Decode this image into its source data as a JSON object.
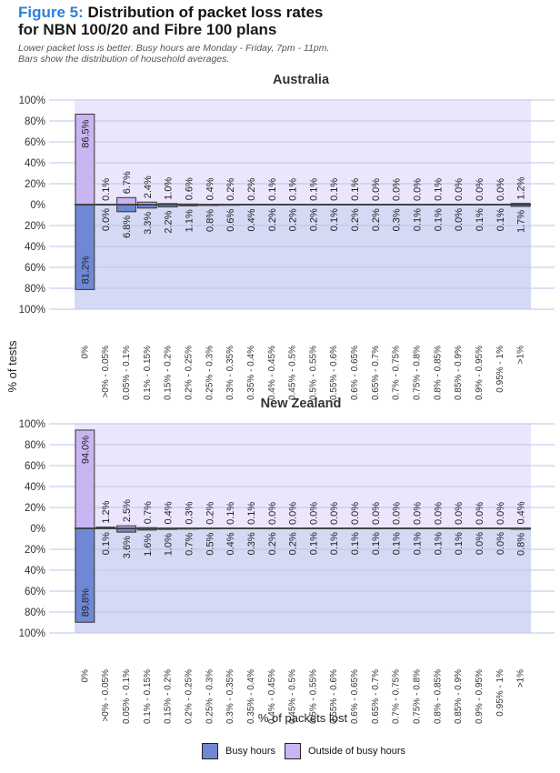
{
  "figure": {
    "label": "Figure 5:",
    "title_line1": "Distribution of packet loss rates",
    "title_line2": "for NBN 100/20 and Fibre 100 plans",
    "subtitle_line1": "Lower packet loss is better. Busy hours are Monday - Friday, 7pm - 11pm.",
    "subtitle_line2": "Bars show the distribution of household averages."
  },
  "legend": [
    {
      "name": "Busy hours",
      "color": "#6f88d6"
    },
    {
      "name": "Outside of busy hours",
      "color": "#c9b5f1"
    }
  ],
  "colors": {
    "busy": "#6f88d6",
    "outside": "#c9b5f1",
    "bg_top": "#ece6fd",
    "bg_bottom": "#d5daf4",
    "grid": "#bfc3e8",
    "zero_line": "#444444"
  },
  "chart_data": {
    "type": "bar",
    "layout": "mirrored",
    "ylabel": "% of tests",
    "xlabel": "% of packets lost",
    "yticks": [
      "100%",
      "80%",
      "60%",
      "40%",
      "20%",
      "0%",
      "20%",
      "40%",
      "60%",
      "80%",
      "100%"
    ],
    "ylim": [
      0,
      100
    ],
    "legend_position": "bottom",
    "categories": [
      "0%",
      ">0% - 0.05%",
      "0.05% - 0.1%",
      "0.1% - 0.15%",
      "0.15% - 0.2%",
      "0.2% - 0.25%",
      "0.25% - 0.3%",
      "0.3% - 0.35%",
      "0.35% - 0.4%",
      "0.4% - 0.45%",
      "0.45% - 0.5%",
      "0.5% - 0.55%",
      "0.55% - 0.6%",
      "0.6% - 0.65%",
      "0.65% - 0.7%",
      "0.7% - 0.75%",
      "0.75% - 0.8%",
      "0.8% - 0.85%",
      "0.85% - 0.9%",
      "0.9% - 0.95%",
      "0.95% - 1%",
      ">1%"
    ],
    "panels": [
      {
        "title": "Australia",
        "series": [
          {
            "name": "Outside of busy hours",
            "direction": "up",
            "values": [
              86.5,
              0.1,
              6.7,
              2.4,
              1.0,
              0.6,
              0.4,
              0.2,
              0.2,
              0.1,
              0.1,
              0.1,
              0.1,
              0.1,
              0.0,
              0.0,
              0.0,
              0.1,
              0.0,
              0.0,
              0.0,
              1.2
            ],
            "labels": [
              "86.5%",
              "0.1%",
              "6.7%",
              "2.4%",
              "1.0%",
              "0.6%",
              "0.4%",
              "0.2%",
              "0.2%",
              "0.1%",
              "0.1%",
              "0.1%",
              "0.1%",
              "0.1%",
              "0.0%",
              "0.0%",
              "0.0%",
              "0.1%",
              "0.0%",
              "0.0%",
              "0.0%",
              "1.2%"
            ]
          },
          {
            "name": "Busy hours",
            "direction": "down",
            "values": [
              81.2,
              0.0,
              6.8,
              3.3,
              2.2,
              1.1,
              0.8,
              0.6,
              0.4,
              0.2,
              0.2,
              0.2,
              0.1,
              0.2,
              0.2,
              0.3,
              0.1,
              0.1,
              0.0,
              0.1,
              0.1,
              1.7
            ],
            "labels": [
              "81.2%",
              "0.0%",
              "6.8%",
              "3.3%",
              "2.2%",
              "1.1%",
              "0.8%",
              "0.6%",
              "0.4%",
              "0.2%",
              "0.2%",
              "0.2%",
              "0.1%",
              "0.2%",
              "0.2%",
              "0.3%",
              "0.1%",
              "0.1%",
              "0.0%",
              "0.1%",
              "0.1%",
              "1.7%"
            ]
          }
        ]
      },
      {
        "title": "New Zealand",
        "series": [
          {
            "name": "Outside of busy hours",
            "direction": "up",
            "values": [
              94.0,
              1.2,
              2.5,
              0.7,
              0.4,
              0.3,
              0.2,
              0.1,
              0.1,
              0.0,
              0.0,
              0.0,
              0.0,
              0.0,
              0.0,
              0.0,
              0.0,
              0.0,
              0.0,
              0.0,
              0.0,
              0.4
            ],
            "labels": [
              "94.0%",
              "1.2%",
              "2.5%",
              "0.7%",
              "0.4%",
              "0.3%",
              "0.2%",
              "0.1%",
              "0.1%",
              "0.0%",
              "0.0%",
              "0.0%",
              "0.0%",
              "0.0%",
              "0.0%",
              "0.0%",
              "0.0%",
              "0.0%",
              "0.0%",
              "0.0%",
              "0.0%",
              "0.4%"
            ]
          },
          {
            "name": "Busy hours",
            "direction": "down",
            "values": [
              89.8,
              0.1,
              3.6,
              1.6,
              1.0,
              0.7,
              0.5,
              0.4,
              0.3,
              0.2,
              0.2,
              0.1,
              0.1,
              0.1,
              0.1,
              0.1,
              0.1,
              0.1,
              0.1,
              0.0,
              0.0,
              0.8
            ],
            "labels": [
              "89.8%",
              "0.1%",
              "3.6%",
              "1.6%",
              "1.0%",
              "0.7%",
              "0.5%",
              "0.4%",
              "0.3%",
              "0.2%",
              "0.2%",
              "0.1%",
              "0.1%",
              "0.1%",
              "0.1%",
              "0.1%",
              "0.1%",
              "0.1%",
              "0.1%",
              "0.0%",
              "0.0%",
              "0.8%"
            ]
          }
        ]
      }
    ]
  }
}
